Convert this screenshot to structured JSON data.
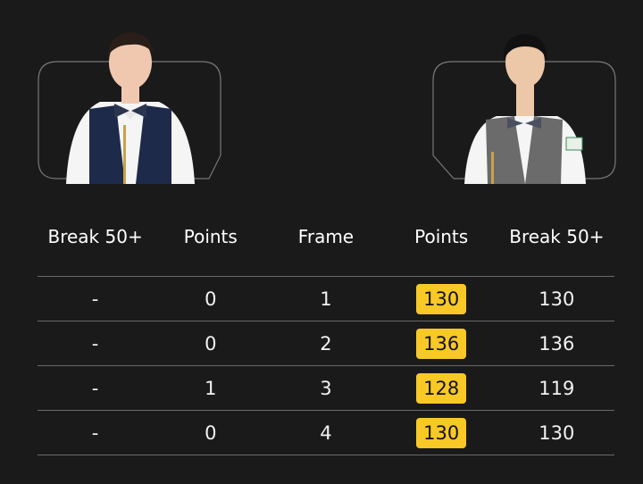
{
  "players": [
    {
      "side": "left",
      "photo": "player-portrait-navy-waistcoat"
    },
    {
      "side": "right",
      "photo": "player-portrait-grey-waistcoat"
    }
  ],
  "headers": [
    "Break 50+",
    "Points",
    "Frame",
    "Points",
    "Break 50+"
  ],
  "rows": [
    {
      "left_break": "-",
      "left_points": "0",
      "frame": "1",
      "right_points": "130",
      "right_break": "130"
    },
    {
      "left_break": "-",
      "left_points": "0",
      "frame": "2",
      "right_points": "136",
      "right_break": "136"
    },
    {
      "left_break": "-",
      "left_points": "1",
      "frame": "3",
      "right_points": "128",
      "right_break": "119"
    },
    {
      "left_break": "-",
      "left_points": "0",
      "frame": "4",
      "right_points": "130",
      "right_break": "130"
    }
  ],
  "colors": {
    "background": "#1a1a1a",
    "winner_badge": "#f8c926",
    "divider": "#6a6a6a"
  }
}
